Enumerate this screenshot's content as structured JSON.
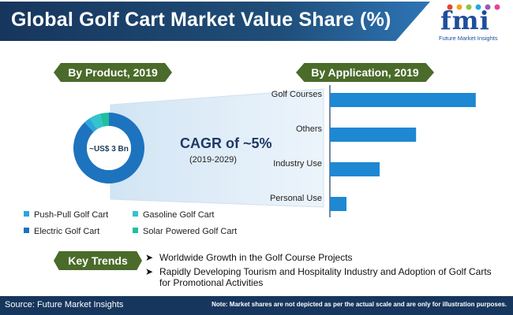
{
  "header": {
    "title": "Global Golf Cart Market Value Share (%)",
    "logo_mark": "fmi",
    "logo_subtitle": "Future Market Insights"
  },
  "product_section": {
    "label": "By Product, 2019",
    "center_value": "~US$ 3 Bn",
    "cagr": "CAGR of ~5%",
    "cagr_period": "(2019-2029)"
  },
  "application_section": {
    "label": "By Application, 2019"
  },
  "chart_data": [
    {
      "type": "pie",
      "title": "By Product, 2019",
      "categories": [
        "Electric Golf Cart",
        "Push-Pull Golf Cart",
        "Gasoline Golf Cart",
        "Solar Powered Golf Cart"
      ],
      "values": [
        88,
        3,
        5,
        4
      ],
      "colors": [
        "#1e73be",
        "#2aa7d8",
        "#33c4cc",
        "#1fbfa0"
      ],
      "legend": {
        "placement": "bottom",
        "entries": [
          "Push-Pull Golf Cart",
          "Gasoline Golf Cart",
          "Electric Golf Cart",
          "Solar Powered Golf Cart"
        ]
      }
    },
    {
      "type": "bar",
      "orientation": "horizontal",
      "title": "By Application, 2019",
      "categories": [
        "Golf Courses",
        "Others",
        "Industry Use",
        "Personal Use"
      ],
      "values": [
        44,
        26,
        15,
        5
      ],
      "xlim": [
        0,
        50
      ],
      "color": "#1e88d2",
      "grid": false
    }
  ],
  "key_trends": {
    "label": "Key Trends",
    "items": [
      "Worldwide Growth in the Golf Course Projects",
      "Rapidly Developing Tourism and Hospitality Industry and Adoption of Golf Carts for Promotional  Activities"
    ]
  },
  "footer": {
    "source": "Source: Future Market Insights",
    "note": "Note: Market shares are not depicted as per the actual scale and are only for illustration purposes."
  }
}
